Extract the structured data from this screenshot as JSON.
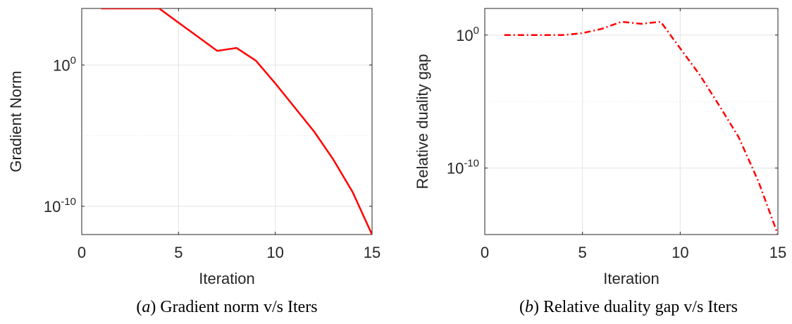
{
  "chart_data": [
    {
      "type": "line",
      "caption_letter": "a",
      "caption_text": "Gradient norm v/s Iters",
      "xlabel": "Iteration",
      "ylabel": "Gradient Norm",
      "xlim": [
        0,
        15
      ],
      "ylim": [
        1e-12,
        10000.0
      ],
      "yscale": "log",
      "grid": true,
      "xticks": [
        0,
        5,
        10,
        15
      ],
      "yticks": [
        {
          "value": 1.0,
          "base": "10",
          "exp": "0"
        },
        {
          "value": 1e-10,
          "base": "10",
          "exp": "-10"
        }
      ],
      "y_minor_grid": [
        1e-05
      ],
      "series": [
        {
          "color": "#ff0000",
          "linestyle": "solid",
          "x": [
            1,
            2,
            3,
            4,
            5,
            6,
            7,
            8,
            9,
            10,
            11,
            12,
            13,
            14,
            15
          ],
          "y": [
            10000.0,
            10000.0,
            10000.0,
            10000.0,
            1000.0,
            100.0,
            10.0,
            16.0,
            2.0,
            0.05,
            0.001,
            2e-05,
            2e-07,
            1e-09,
            1e-12
          ]
        }
      ]
    },
    {
      "type": "line",
      "caption_letter": "b",
      "caption_text": "Relative duality gap v/s Iters",
      "xlabel": "Iteration",
      "ylabel": "Relative duality gap",
      "xlim": [
        0,
        15
      ],
      "ylim": [
        1e-15,
        100.0
      ],
      "yscale": "log",
      "grid": true,
      "xticks": [
        0,
        5,
        10,
        15
      ],
      "yticks": [
        {
          "value": 1.0,
          "base": "10",
          "exp": "0"
        },
        {
          "value": 1e-10,
          "base": "10",
          "exp": "-10"
        }
      ],
      "y_minor_grid": [
        1e-05
      ],
      "series": [
        {
          "color": "#ff0000",
          "linestyle": "dashdot",
          "x": [
            1,
            2,
            3,
            4,
            5,
            6,
            7,
            8,
            9,
            10,
            11,
            12,
            13,
            14,
            15
          ],
          "y": [
            1.0,
            1.0,
            1.0,
            1.0,
            1.4,
            3.0,
            10.0,
            7.0,
            10.0,
            0.1,
            0.001,
            5e-06,
            2e-08,
            1e-11,
            1e-15
          ]
        }
      ]
    }
  ]
}
